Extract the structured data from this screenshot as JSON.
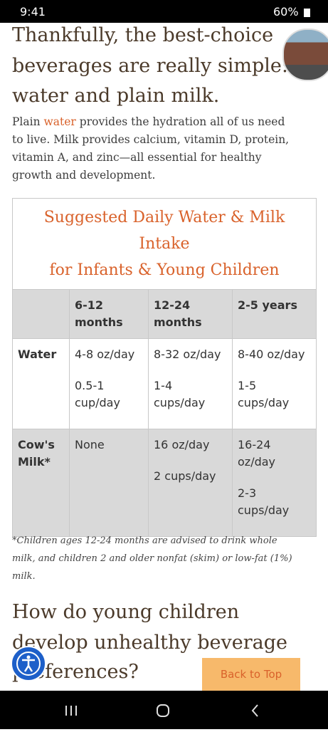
{
  "status_bar": {
    "time": "9:41",
    "battery": "60%"
  },
  "heading": {
    "lines": [
      "Thankfully, the best-choice",
      "beverages are really simple:",
      "water and plain milk."
    ]
  },
  "paragraph": {
    "lead": "Plain",
    "link": "water",
    "lines": [
      "provides the hydration all of us need",
      "to live. Milk provides calcium, vitamin D, protein,",
      "vitamin A, and zinc—all essential for healthy",
      "growth and development."
    ]
  },
  "table": {
    "title_lines": [
      "Suggested Daily Water & Milk",
      "Intake",
      "for Infants & Young Children"
    ],
    "columns": [
      [
        "6-12",
        "months"
      ],
      [
        "12-24",
        "months"
      ],
      [
        "2-5 years"
      ]
    ],
    "rows": [
      {
        "label": [
          "Water"
        ],
        "cells": [
          [
            "4-8 oz/day",
            "0.5-1",
            "cup/day"
          ],
          [
            "8-32 oz/day",
            "1-4",
            "cups/day"
          ],
          [
            "8-40 oz/day",
            "1-5",
            "cups/day"
          ]
        ]
      },
      {
        "label": [
          "Cow's",
          "Milk*"
        ],
        "cells": [
          [
            "None"
          ],
          [
            "16 oz/day",
            "2 cups/day"
          ],
          [
            "16-24",
            "oz/day",
            "2-3",
            "cups/day"
          ]
        ]
      }
    ]
  },
  "footnote": {
    "lines": [
      "*Children ages 12-24 months are advised to drink whole",
      "milk, and children 2 and older nonfat (skim) or low-fat (1%)",
      "milk."
    ]
  },
  "heading2": {
    "lines": [
      "How do young children",
      "develop unhealthy beverage",
      "preferences?"
    ]
  },
  "back_to_top": "Back to Top"
}
